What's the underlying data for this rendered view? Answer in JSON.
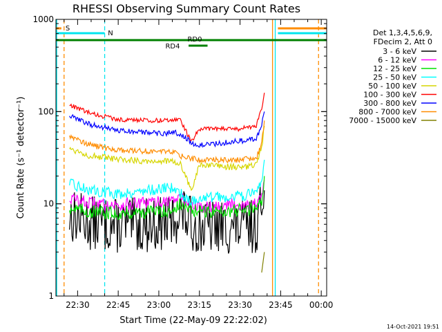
{
  "chart_data": {
    "type": "line",
    "title": "RHESSI Observing Summary Count Rates",
    "xlabel": "Start Time (22-May-09 22:22:02)",
    "ylabel": "Count Rate (s⁻¹ detector⁻¹)",
    "yscale": "log",
    "ylim": [
      1,
      1000
    ],
    "xlim": [
      "22:22",
      "00:02"
    ],
    "x_tick_labels": [
      "22:30",
      "22:45",
      "23:00",
      "23:15",
      "23:30",
      "23:45",
      "00:00"
    ],
    "y_tick_labels": [
      "1",
      "10",
      "100",
      "1000"
    ],
    "timestamp": "14-Oct-2021 19:51",
    "legend_header": [
      "Det 1,3,4,5,6,9,",
      "FDecim 2, Att 0"
    ],
    "grid": false,
    "flag_labels": [
      "S",
      "N",
      "RD0",
      "RD4"
    ],
    "vertical_markers": [
      {
        "time": "22:25",
        "label": "S",
        "color": "#ff8c00",
        "style": "dashed"
      },
      {
        "time": "22:40",
        "label": "N",
        "color": "#00e5ee",
        "style": "dashed"
      },
      {
        "time": "23:42",
        "label": "",
        "color": "#ff8c00",
        "style": "solid"
      },
      {
        "time": "23:43",
        "label": "",
        "color": "#00e5ee",
        "style": "solid"
      },
      {
        "time": "23:59",
        "label": "",
        "color": "#ff8c00",
        "style": "dashed"
      }
    ],
    "series": [
      {
        "name": "3 - 6 keV",
        "color": "#000000",
        "x": [
          "22:27",
          "22:35",
          "22:45",
          "23:00",
          "23:05",
          "23:08",
          "23:12",
          "23:15",
          "23:30",
          "23:36",
          "23:38",
          "23:39"
        ],
        "y": [
          7.5,
          6.2,
          5.8,
          6.0,
          6.3,
          8.5,
          6.0,
          5.6,
          5.5,
          5.8,
          9.0,
          14
        ]
      },
      {
        "name": "6 - 12 keV",
        "color": "#ff00ff",
        "x": [
          "22:27",
          "22:35",
          "22:45",
          "23:00",
          "23:05",
          "23:08",
          "23:12",
          "23:15",
          "23:30",
          "23:36",
          "23:38",
          "23:39"
        ],
        "y": [
          11.5,
          10.0,
          9.6,
          10.5,
          11.0,
          11.6,
          9.6,
          9.3,
          9.8,
          10.0,
          12,
          18
        ]
      },
      {
        "name": "12 - 25 keV",
        "color": "#00e000",
        "x": [
          "22:27",
          "22:35",
          "22:45",
          "23:00",
          "23:05",
          "23:08",
          "23:12",
          "23:15",
          "23:30",
          "23:36",
          "23:38",
          "23:39"
        ],
        "y": [
          9.0,
          8.2,
          7.9,
          8.3,
          8.6,
          9.8,
          8.4,
          8.2,
          8.5,
          8.8,
          11,
          20
        ]
      },
      {
        "name": "25 - 50 keV",
        "color": "#00ffff",
        "x": [
          "22:27",
          "22:35",
          "22:45",
          "23:00",
          "23:05",
          "23:08",
          "23:12",
          "23:15",
          "23:30",
          "23:36",
          "23:38",
          "23:39"
        ],
        "y": [
          16.5,
          14.0,
          12.8,
          14.5,
          15.0,
          13.0,
          10.5,
          11.5,
          12.2,
          13.0,
          18,
          30
        ]
      },
      {
        "name": "50 - 100 keV",
        "color": "#d6d600",
        "x": [
          "22:27",
          "22:35",
          "22:45",
          "23:00",
          "23:05",
          "23:08",
          "23:12",
          "23:15",
          "23:30",
          "23:36",
          "23:38",
          "23:39"
        ],
        "y": [
          40,
          33,
          30,
          29,
          29,
          27,
          14,
          26,
          25,
          26,
          40,
          70
        ]
      },
      {
        "name": "100 - 300 keV",
        "color": "#ff0000",
        "x": [
          "22:27",
          "22:35",
          "22:45",
          "23:00",
          "23:05",
          "23:08",
          "23:12",
          "23:15",
          "23:30",
          "23:36",
          "23:38",
          "23:39"
        ],
        "y": [
          118,
          95,
          82,
          80,
          82,
          82,
          47,
          65,
          65,
          70,
          110,
          160
        ]
      },
      {
        "name": "300 - 800 keV",
        "color": "#0000ff",
        "x": [
          "22:27",
          "22:35",
          "22:45",
          "23:00",
          "23:05",
          "23:08",
          "23:12",
          "23:15",
          "23:30",
          "23:36",
          "23:38",
          "23:39"
        ],
        "y": [
          90,
          72,
          62,
          58,
          59,
          58,
          46,
          43,
          48,
          50,
          70,
          100
        ]
      },
      {
        "name": "800 - 7000 keV",
        "color": "#ff8c00",
        "x": [
          "22:27",
          "22:35",
          "22:45",
          "23:00",
          "23:05",
          "23:08",
          "23:12",
          "23:15",
          "23:30",
          "23:36",
          "23:38",
          "23:39"
        ],
        "y": [
          55,
          43,
          38,
          37,
          37,
          33,
          31,
          30,
          30,
          31,
          45,
          80
        ]
      },
      {
        "name": "7000 - 15000 keV",
        "color": "#808000",
        "x": [
          "23:38",
          "23:39"
        ],
        "y": [
          1.8,
          3.0
        ]
      }
    ]
  }
}
